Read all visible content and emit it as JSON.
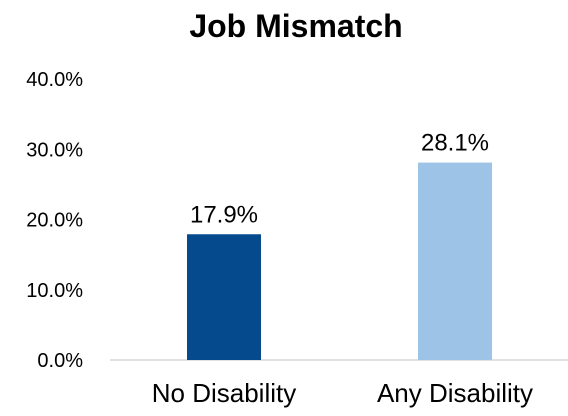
{
  "chart_data": {
    "type": "bar",
    "title": "Job Mismatch",
    "categories": [
      "No Disability",
      "Any Disability"
    ],
    "values": [
      17.9,
      28.1
    ],
    "data_labels": [
      "17.9%",
      "28.1%"
    ],
    "bar_colors": [
      "#064a8e",
      "#9dc3e6"
    ],
    "ylim": [
      0,
      40
    ],
    "yticks": [
      0,
      10,
      20,
      30,
      40
    ],
    "ytick_labels": [
      "0.0%",
      "10.0%",
      "20.0%",
      "30.0%",
      "40.0%"
    ],
    "grid": false,
    "legend": "none"
  }
}
